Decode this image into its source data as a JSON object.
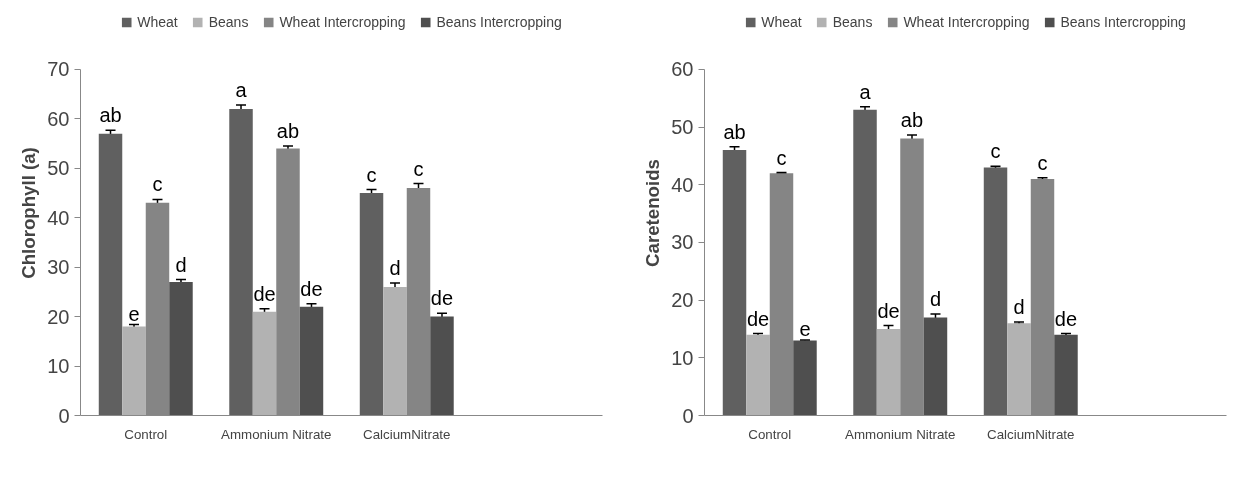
{
  "chart_data": [
    {
      "type": "bar",
      "ylabel": "Chlorophyll (a)",
      "categories": [
        "Control",
        "Ammonium Nitrate",
        "CalciumNitrate",
        null
      ],
      "ylim": [
        0,
        70
      ],
      "yticks": [
        0,
        10,
        20,
        30,
        40,
        50,
        60,
        70
      ],
      "grid": false,
      "legend": "top",
      "series": [
        {
          "name": "Wheat",
          "color": "#606060",
          "values": [
            57,
            62,
            45,
            null
          ],
          "errors": [
            0.7,
            0.8,
            0.7,
            null
          ],
          "value_labels": [
            "ab",
            "a",
            "c",
            null
          ]
        },
        {
          "name": "Beans",
          "color": "#b2b2b2",
          "values": [
            18,
            21,
            26,
            null
          ],
          "errors": [
            0.4,
            0.6,
            0.8,
            null
          ],
          "value_labels": [
            "e",
            "de",
            "d",
            null
          ]
        },
        {
          "name": "Wheat Intercropping",
          "color": "#858585",
          "values": [
            43,
            54,
            46,
            null
          ],
          "errors": [
            0.7,
            0.5,
            0.9,
            null
          ],
          "value_labels": [
            "c",
            "ab",
            "c",
            null
          ]
        },
        {
          "name": "Beans Intercropping",
          "color": "#4f4f4f",
          "values": [
            27,
            22,
            20,
            null
          ],
          "errors": [
            0.5,
            0.6,
            0.7,
            null
          ],
          "value_labels": [
            "d",
            "de",
            "de",
            null
          ]
        }
      ]
    },
    {
      "type": "bar",
      "ylabel": "Caretenoids",
      "categories": [
        "Control",
        "Ammonium Nitrate",
        "CalciumNitrate",
        null
      ],
      "ylim": [
        0,
        60
      ],
      "yticks": [
        0,
        10,
        20,
        30,
        40,
        50,
        60
      ],
      "grid": false,
      "legend": "top",
      "series": [
        {
          "name": "Wheat",
          "color": "#606060",
          "values": [
            46,
            53,
            43,
            null
          ],
          "errors": [
            0.6,
            0.5,
            0.2,
            null
          ],
          "value_labels": [
            "ab",
            "a",
            "c",
            null
          ]
        },
        {
          "name": "Beans",
          "color": "#b2b2b2",
          "values": [
            14,
            15,
            16,
            null
          ],
          "errors": [
            0.2,
            0.6,
            0.2,
            null
          ],
          "value_labels": [
            "de",
            "de",
            "d",
            null
          ]
        },
        {
          "name": "Wheat Intercropping",
          "color": "#858585",
          "values": [
            42,
            48,
            41,
            null
          ],
          "errors": [
            0.1,
            0.6,
            0.2,
            null
          ],
          "value_labels": [
            "c",
            "ab",
            "c",
            null
          ]
        },
        {
          "name": "Beans Intercropping",
          "color": "#4f4f4f",
          "values": [
            13,
            17,
            14,
            null
          ],
          "errors": [
            0.1,
            0.6,
            0.2,
            null
          ],
          "value_labels": [
            "e",
            "d",
            "de",
            null
          ]
        }
      ]
    }
  ]
}
